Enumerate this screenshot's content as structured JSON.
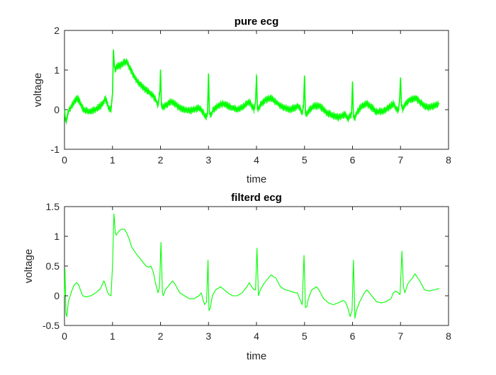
{
  "colors": {
    "series": "#00ff00",
    "axis": "#262626",
    "background": "#ffffff"
  },
  "chart_data": [
    {
      "type": "line",
      "title": "pure ecg",
      "xlabel": "time",
      "ylabel": "voltage",
      "xlim": [
        0,
        8
      ],
      "ylim": [
        -1,
        2
      ],
      "xticks": [
        0,
        1,
        2,
        3,
        4,
        5,
        6,
        7,
        8
      ],
      "xtick_labels": [
        "0",
        "1",
        "2",
        "3",
        "4",
        "5",
        "6",
        "7",
        "8"
      ],
      "yticks": [
        -1,
        0,
        1,
        2
      ],
      "ytick_labels": [
        "-1",
        "0",
        "1",
        "2"
      ],
      "grid": false,
      "series": [
        {
          "color": "#00ff00",
          "noise_amplitude": 0.1,
          "x": [
            0.0,
            0.02,
            0.04,
            0.06,
            0.08,
            0.1,
            0.15,
            0.2,
            0.25,
            0.3,
            0.35,
            0.4,
            0.5,
            0.6,
            0.7,
            0.8,
            0.85,
            0.88,
            0.92,
            0.97,
            1.0,
            1.02,
            1.04,
            1.06,
            1.08,
            1.1,
            1.15,
            1.2,
            1.25,
            1.3,
            1.4,
            1.5,
            1.6,
            1.7,
            1.8,
            1.85,
            1.9,
            1.95,
            1.97,
            1.99,
            2.0,
            2.02,
            2.05,
            2.1,
            2.2,
            2.3,
            2.4,
            2.5,
            2.6,
            2.7,
            2.8,
            2.85,
            2.9,
            2.95,
            2.98,
            3.0,
            3.02,
            3.05,
            3.1,
            3.2,
            3.3,
            3.4,
            3.5,
            3.6,
            3.7,
            3.8,
            3.85,
            3.9,
            3.95,
            3.98,
            4.0,
            4.02,
            4.05,
            4.1,
            4.2,
            4.3,
            4.4,
            4.5,
            4.6,
            4.7,
            4.8,
            4.85,
            4.9,
            4.95,
            4.98,
            5.0,
            5.02,
            5.05,
            5.1,
            5.2,
            5.3,
            5.4,
            5.5,
            5.6,
            5.7,
            5.8,
            5.85,
            5.9,
            5.95,
            5.98,
            6.0,
            6.02,
            6.05,
            6.1,
            6.2,
            6.3,
            6.4,
            6.5,
            6.6,
            6.7,
            6.8,
            6.85,
            6.9,
            6.95,
            6.98,
            7.0,
            7.02,
            7.05,
            7.1,
            7.2,
            7.3,
            7.4,
            7.5,
            7.6,
            7.7,
            7.8
          ],
          "y": [
            0.0,
            -0.25,
            -0.3,
            -0.15,
            -0.05,
            0.0,
            0.1,
            0.2,
            0.28,
            0.25,
            0.1,
            0.0,
            -0.05,
            -0.02,
            0.05,
            0.15,
            0.3,
            0.2,
            0.05,
            0.0,
            0.4,
            1.5,
            1.1,
            1.0,
            1.05,
            1.1,
            1.1,
            1.15,
            1.2,
            1.2,
            0.95,
            0.75,
            0.6,
            0.5,
            0.4,
            0.35,
            0.25,
            0.1,
            0.3,
            0.5,
            1.0,
            0.1,
            0.05,
            0.1,
            0.2,
            0.15,
            0.05,
            0.0,
            -0.02,
            0.0,
            0.05,
            0.0,
            -0.1,
            -0.2,
            -0.1,
            0.9,
            -0.1,
            -0.15,
            0.0,
            0.1,
            0.15,
            0.1,
            0.05,
            0.0,
            0.05,
            0.15,
            0.2,
            0.1,
            0.0,
            0.2,
            0.85,
            0.0,
            0.05,
            0.15,
            0.25,
            0.3,
            0.2,
            0.1,
            0.05,
            0.0,
            0.05,
            0.1,
            0.05,
            -0.1,
            0.1,
            0.85,
            -0.1,
            -0.1,
            0.0,
            0.1,
            0.1,
            0.0,
            -0.1,
            -0.15,
            -0.2,
            -0.15,
            -0.1,
            -0.25,
            -0.15,
            -0.1,
            0.7,
            -0.2,
            -0.2,
            -0.05,
            0.1,
            0.15,
            0.05,
            -0.05,
            -0.05,
            0.0,
            0.1,
            0.15,
            0.05,
            -0.05,
            0.2,
            0.8,
            0.1,
            0.0,
            0.15,
            0.25,
            0.3,
            0.2,
            0.1,
            0.05,
            0.1,
            0.15
          ]
        }
      ]
    },
    {
      "type": "line",
      "title": "filterd ecg",
      "xlabel": "time",
      "ylabel": "voltage",
      "xlim": [
        0,
        8
      ],
      "ylim": [
        -0.5,
        1.5
      ],
      "xticks": [
        0,
        1,
        2,
        3,
        4,
        5,
        6,
        7,
        8
      ],
      "xtick_labels": [
        "0",
        "1",
        "2",
        "3",
        "4",
        "5",
        "6",
        "7",
        "8"
      ],
      "yticks": [
        -0.5,
        0,
        0.5,
        1,
        1.5
      ],
      "ytick_labels": [
        "-0.5",
        "0",
        "0.5",
        "1",
        "1.5"
      ],
      "grid": false,
      "series": [
        {
          "color": "#00ff00",
          "noise_amplitude": 0,
          "x": [
            0.0,
            0.01,
            0.02,
            0.03,
            0.05,
            0.08,
            0.12,
            0.15,
            0.2,
            0.25,
            0.3,
            0.33,
            0.38,
            0.45,
            0.55,
            0.65,
            0.75,
            0.82,
            0.85,
            0.88,
            0.92,
            0.97,
            1.0,
            1.03,
            1.06,
            1.08,
            1.1,
            1.15,
            1.2,
            1.25,
            1.3,
            1.35,
            1.4,
            1.5,
            1.6,
            1.7,
            1.75,
            1.8,
            1.85,
            1.9,
            1.95,
            1.98,
            2.01,
            2.04,
            2.06,
            2.1,
            2.15,
            2.25,
            2.3,
            2.4,
            2.5,
            2.6,
            2.7,
            2.8,
            2.85,
            2.88,
            2.92,
            2.96,
            2.99,
            3.01,
            3.04,
            3.08,
            3.15,
            3.25,
            3.3,
            3.4,
            3.5,
            3.6,
            3.7,
            3.8,
            3.85,
            3.9,
            3.95,
            3.98,
            4.01,
            4.04,
            4.08,
            4.15,
            4.25,
            4.3,
            4.4,
            4.5,
            4.6,
            4.7,
            4.8,
            4.85,
            4.9,
            4.95,
            4.99,
            5.02,
            5.05,
            5.08,
            5.15,
            5.25,
            5.3,
            5.4,
            5.5,
            5.6,
            5.7,
            5.8,
            5.85,
            5.9,
            5.95,
            5.99,
            6.02,
            6.05,
            6.08,
            6.15,
            6.25,
            6.3,
            6.4,
            6.5,
            6.6,
            6.7,
            6.8,
            6.85,
            6.9,
            6.95,
            6.99,
            7.03,
            7.06,
            7.09,
            7.15,
            7.25,
            7.3,
            7.4,
            7.5,
            7.6,
            7.7,
            7.8
          ],
          "y": [
            0.0,
            0.45,
            0.1,
            -0.3,
            -0.35,
            -0.1,
            0.0,
            0.08,
            0.18,
            0.22,
            0.18,
            0.1,
            0.0,
            -0.02,
            0.0,
            0.05,
            0.12,
            0.25,
            0.2,
            0.1,
            0.02,
            0.0,
            0.5,
            1.38,
            1.05,
            1.02,
            1.05,
            1.1,
            1.12,
            1.12,
            1.05,
            0.95,
            0.82,
            0.7,
            0.6,
            0.5,
            0.48,
            0.5,
            0.4,
            0.2,
            0.05,
            0.15,
            0.9,
            0.05,
            0.0,
            0.1,
            0.15,
            0.25,
            0.2,
            0.05,
            0.0,
            -0.05,
            -0.05,
            0.0,
            0.05,
            -0.05,
            -0.15,
            -0.1,
            0.6,
            -0.25,
            -0.2,
            0.0,
            0.1,
            0.15,
            0.12,
            0.05,
            0.0,
            0.0,
            0.05,
            0.15,
            0.22,
            0.15,
            0.1,
            0.1,
            0.8,
            0.0,
            0.1,
            0.2,
            0.3,
            0.35,
            0.3,
            0.15,
            0.1,
            0.08,
            0.05,
            0.05,
            -0.05,
            -0.15,
            0.68,
            -0.2,
            -0.18,
            -0.05,
            0.1,
            0.15,
            0.1,
            -0.05,
            -0.12,
            -0.15,
            -0.12,
            -0.08,
            -0.1,
            -0.2,
            -0.35,
            -0.25,
            0.6,
            -0.38,
            -0.25,
            -0.1,
            0.05,
            0.1,
            0.0,
            -0.1,
            -0.12,
            -0.1,
            -0.05,
            0.05,
            0.08,
            0.05,
            0.02,
            0.75,
            0.15,
            0.05,
            0.2,
            0.3,
            0.37,
            0.25,
            0.1,
            0.08,
            0.1,
            0.12
          ]
        }
      ]
    }
  ]
}
